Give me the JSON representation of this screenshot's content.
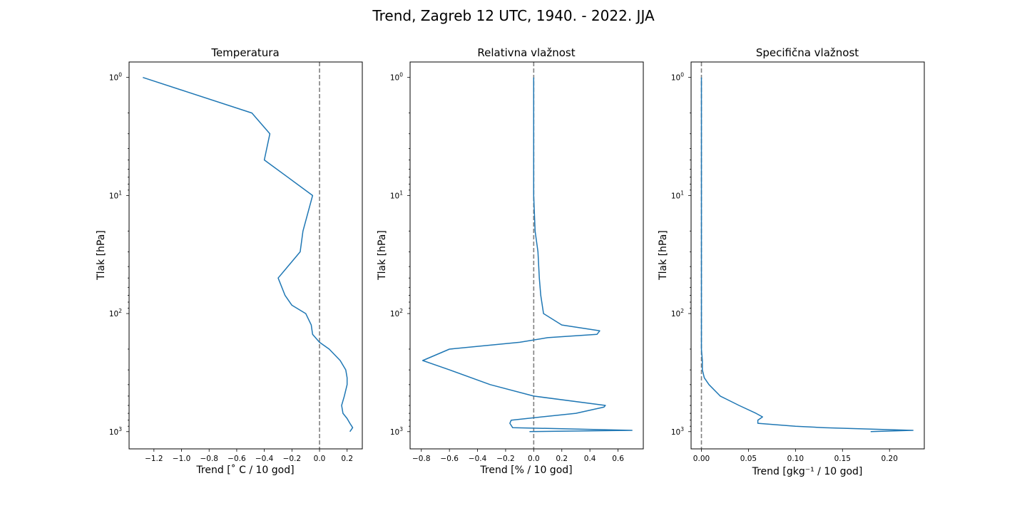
{
  "figure": {
    "suptitle": "Trend, Zagreb 12 UTC, 1940. - 2022. JJA"
  },
  "colors": {
    "series": "#1f77b4",
    "zero_line": "#808080"
  },
  "chart_data": [
    {
      "type": "line",
      "title": "Temperatura",
      "xlabel": "Trend [˚ C / 10 god]",
      "ylabel": "Tlak [hPa]",
      "yscale": "log",
      "y_inverted": true,
      "xlim": [
        -1.38,
        0.31
      ],
      "ylim": [
        1400,
        0.74
      ],
      "xticks": [
        -1.2,
        -1.0,
        -0.8,
        -0.6,
        -0.4,
        -0.2,
        0.0,
        0.2
      ],
      "xtick_labels": [
        "−1.2",
        "−1.0",
        "−0.8",
        "−0.6",
        "−0.4",
        "−0.2",
        "0.0",
        "0.2"
      ],
      "yticks": [
        1,
        10,
        100,
        1000
      ],
      "ytick_labels": [
        "10^0",
        "10^1",
        "10^2",
        "10^3"
      ],
      "zero_line": 0,
      "grid": false,
      "series": [
        {
          "x": [
            0.22,
            0.24,
            0.22,
            0.2,
            0.17,
            0.16,
            0.18,
            0.2,
            0.2,
            0.19,
            0.15,
            0.07,
            0.0,
            -0.05,
            -0.06,
            -0.1,
            -0.2,
            -0.25,
            -0.3,
            -0.14,
            -0.12,
            -0.05,
            -0.23,
            -0.4,
            -0.36,
            -0.49,
            -1.28
          ],
          "y": [
            1000,
            925,
            850,
            775,
            700,
            600,
            500,
            400,
            350,
            300,
            250,
            200,
            175,
            150,
            125,
            100,
            85,
            70,
            50,
            30,
            20,
            10,
            7,
            5,
            3,
            2,
            1
          ]
        }
      ]
    },
    {
      "type": "line",
      "title": "Relativna vlažnost",
      "xlabel": "Trend [% / 10 god]",
      "ylabel": "Tlak [hPa]",
      "yscale": "log",
      "y_inverted": true,
      "xlim": [
        -0.88,
        0.78
      ],
      "ylim": [
        1400,
        0.74
      ],
      "xticks": [
        -0.8,
        -0.6,
        -0.4,
        -0.2,
        0.0,
        0.2,
        0.4,
        0.6
      ],
      "xtick_labels": [
        "−0.8",
        "−0.6",
        "−0.4",
        "−0.2",
        "0.0",
        "0.2",
        "0.4",
        "0.6"
      ],
      "yticks": [
        1,
        10,
        100,
        1000
      ],
      "ytick_labels": [
        "10^0",
        "10^1",
        "10^2",
        "10^3"
      ],
      "zero_line": 0,
      "grid": false,
      "series": [
        {
          "x": [
            -0.03,
            0.7,
            -0.15,
            -0.17,
            -0.16,
            0.3,
            0.5,
            0.51,
            0.0,
            -0.31,
            -0.6,
            -0.79,
            -0.6,
            -0.1,
            0.1,
            0.45,
            0.47,
            0.2,
            0.07,
            0.05,
            0.04,
            0.03,
            0.01,
            0.0,
            0.0,
            0.0,
            0.0
          ],
          "y": [
            1000,
            975,
            925,
            850,
            800,
            700,
            620,
            600,
            500,
            400,
            300,
            250,
            200,
            175,
            160,
            150,
            140,
            125,
            100,
            70,
            50,
            30,
            20,
            10,
            5,
            2,
            1
          ]
        }
      ]
    },
    {
      "type": "line",
      "title": "Specifična vlažnost",
      "xlabel": "Trend [gkg⁻¹ / 10 god]",
      "ylabel": "Tlak [hPa]",
      "yscale": "log",
      "y_inverted": true,
      "xlim": [
        -0.011,
        0.237
      ],
      "ylim": [
        1400,
        0.74
      ],
      "xticks": [
        0.0,
        0.05,
        0.1,
        0.15,
        0.2
      ],
      "xtick_labels": [
        "0.00",
        "0.05",
        "0.10",
        "0.15",
        "0.20"
      ],
      "yticks": [
        1,
        10,
        100,
        1000
      ],
      "ytick_labels": [
        "10^0",
        "10^1",
        "10^2",
        "10^3"
      ],
      "zero_line": 0,
      "grid": false,
      "series": [
        {
          "x": [
            0.18,
            0.225,
            0.13,
            0.1,
            0.06,
            0.06,
            0.065,
            0.058,
            0.04,
            0.02,
            0.008,
            0.003,
            0.001,
            0.001,
            0.0,
            0.0,
            0.0,
            0.0,
            0.0,
            0.0,
            0.0
          ],
          "y": [
            1000,
            975,
            925,
            900,
            850,
            800,
            750,
            700,
            600,
            500,
            400,
            350,
            300,
            250,
            200,
            150,
            100,
            50,
            20,
            10,
            1
          ]
        }
      ]
    }
  ]
}
